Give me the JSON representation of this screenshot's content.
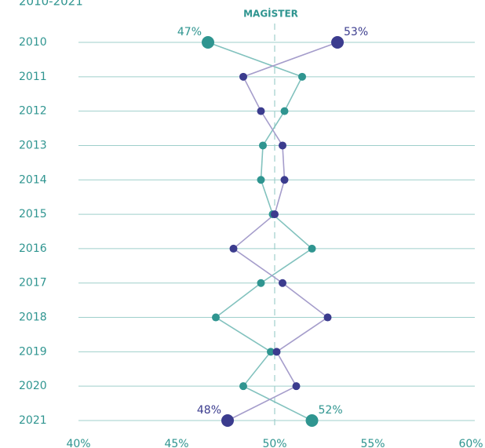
{
  "chart_data": {
    "type": "dot-line",
    "title": "2010-2021",
    "annotation": "MAGİSTER",
    "categories": [
      "2010",
      "2011",
      "2012",
      "2013",
      "2014",
      "2015",
      "2016",
      "2017",
      "2018",
      "2019",
      "2020",
      "2021"
    ],
    "series": [
      {
        "color": "#2f9590",
        "line_color": "#82c2be",
        "values": [
          46.6,
          51.4,
          50.5,
          49.4,
          49.3,
          49.9,
          51.9,
          49.3,
          47.0,
          49.8,
          48.4,
          51.9
        ],
        "value_labels": [
          "47%",
          null,
          null,
          null,
          null,
          null,
          null,
          null,
          null,
          null,
          null,
          "52%"
        ]
      },
      {
        "color": "#3b3c8e",
        "line_color": "#a59dcb",
        "values": [
          53.2,
          48.4,
          49.3,
          50.4,
          50.5,
          50.0,
          47.9,
          50.4,
          52.7,
          50.1,
          51.1,
          47.6
        ],
        "value_labels": [
          "53%",
          null,
          null,
          null,
          null,
          null,
          null,
          null,
          null,
          null,
          null,
          "48%"
        ]
      }
    ],
    "xlim": [
      40,
      60
    ],
    "xticks": [
      {
        "value": 40,
        "label": "40%"
      },
      {
        "value": 45,
        "label": "45%"
      },
      {
        "value": 50,
        "label": "50%"
      },
      {
        "value": 55,
        "label": "55%"
      },
      {
        "value": 60,
        "label": "60%"
      }
    ],
    "reference_x": 50,
    "grid": true
  }
}
